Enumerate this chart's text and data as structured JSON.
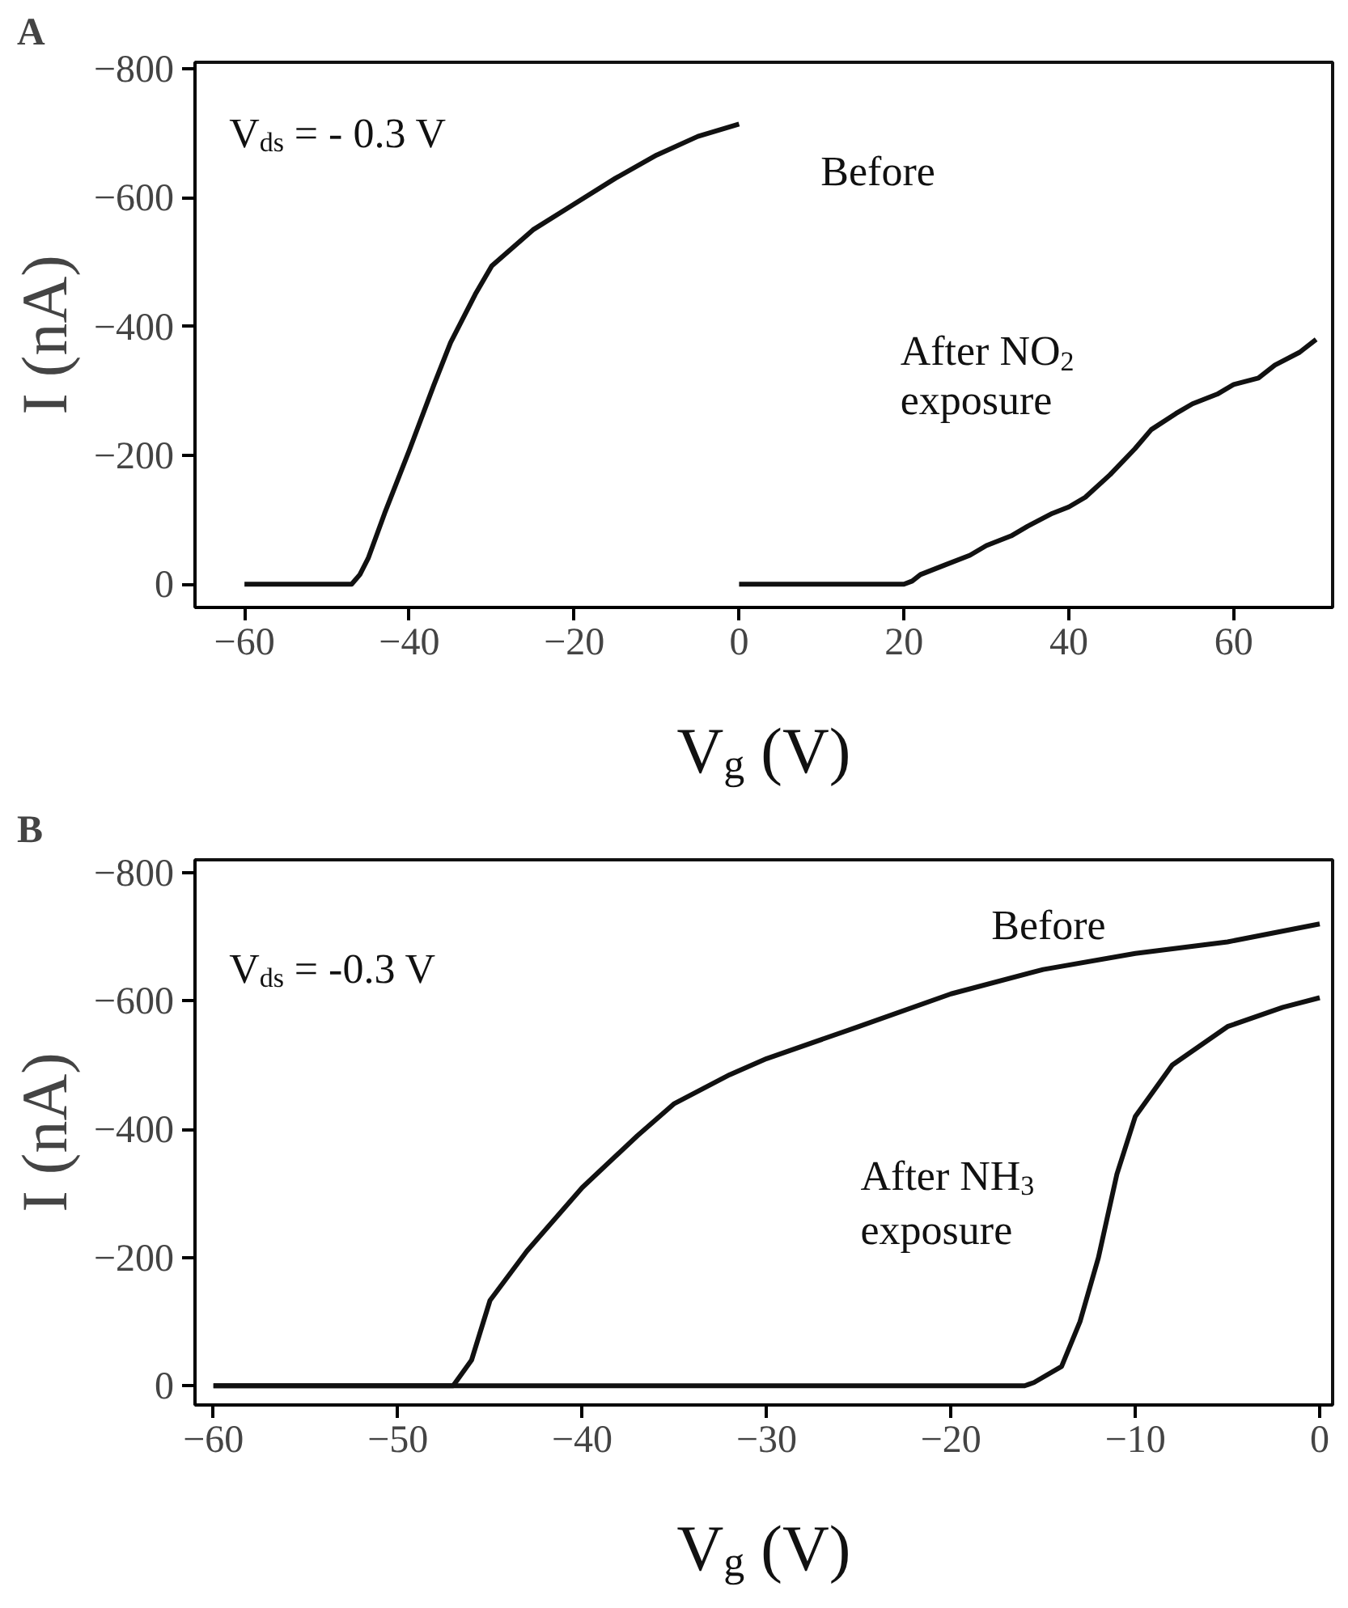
{
  "chart_data": [
    {
      "type": "line",
      "title": "A",
      "xlabel": "V$_{g}$ (V)",
      "ylabel": "I (nA)",
      "xlim": [
        -66,
        72
      ],
      "ylim": [
        36,
        -810
      ],
      "xticks": [
        -60,
        -40,
        -20,
        0,
        20,
        40,
        60
      ],
      "yticks": [
        0,
        -200,
        -400,
        -600,
        -800
      ],
      "grid": false,
      "marker": "none",
      "line_style": "solid",
      "series": [
        {
          "color": "#111111",
          "x": [
            -60,
            -50,
            -47,
            -46,
            -45,
            -43,
            -40,
            -37,
            -35,
            -32,
            -30,
            -25,
            -20,
            -15,
            -10,
            -5,
            0
          ],
          "values": [
            0,
            0,
            0,
            -15,
            -40,
            -110,
            -208,
            -310,
            -375,
            -450,
            -494,
            -550,
            -590,
            -630,
            -666,
            -695,
            -714
          ]
        },
        {
          "color": "#111111",
          "x": [
            0,
            10,
            20,
            21,
            22,
            25,
            28,
            30,
            33,
            35,
            38,
            40,
            42,
            45,
            48,
            50,
            53,
            55,
            58,
            60,
            63,
            65,
            68,
            70
          ],
          "values": [
            0,
            0,
            0,
            -5,
            -15,
            -30,
            -45,
            -60,
            -75,
            -90,
            -110,
            -120,
            -135,
            -170,
            -210,
            -240,
            -265,
            -280,
            -295,
            -310,
            -320,
            -340,
            -360,
            -380
          ]
        }
      ],
      "annotations": [
        "V$_{ds}$ = - 0.3 V",
        "Before",
        "After NO$_{2}$",
        "exposure"
      ]
    },
    {
      "type": "line",
      "title": "B",
      "xlabel": "V$_{g}$ (V)",
      "ylabel": "I (nA)",
      "xlim": [
        -61,
        0.7
      ],
      "ylim": [
        30,
        -820
      ],
      "xticks": [
        -60,
        -50,
        -40,
        -30,
        -20,
        -10,
        0
      ],
      "yticks": [
        0,
        -200,
        -400,
        -600,
        -800
      ],
      "grid": false,
      "marker": "none",
      "line_style": "solid",
      "series": [
        {
          "color": "#111111",
          "x": [
            -60,
            -50,
            -47,
            -46,
            -45,
            -43,
            -40,
            -37,
            -35,
            -32,
            -30,
            -25,
            -20,
            -15,
            -10,
            -5,
            0
          ],
          "values": [
            0,
            0,
            0,
            -40,
            -133,
            -210,
            -309,
            -390,
            -440,
            -485,
            -510,
            -560,
            -611,
            -649,
            -674,
            -692,
            -720
          ]
        },
        {
          "color": "#111111",
          "x": [
            -60,
            -30,
            -16,
            -15.5,
            -14,
            -13,
            -12,
            -11,
            -10,
            -8,
            -5,
            -2,
            0
          ],
          "values": [
            0,
            0,
            0,
            -5,
            -30,
            -100,
            -200,
            -330,
            -420,
            -500,
            -560,
            -590,
            -605
          ]
        }
      ],
      "annotations": [
        "V$_{ds}$ = -0.3 V",
        "Before",
        "After NH$_{3}$",
        "exposure"
      ]
    }
  ]
}
